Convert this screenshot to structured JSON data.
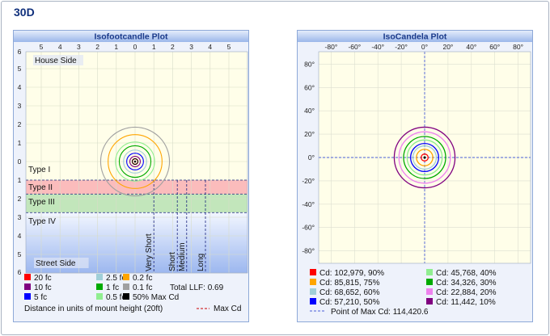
{
  "page": {
    "title": "30D"
  },
  "colors": {
    "20": "#ff0000",
    "10": "#800080",
    "5": "#0000ff",
    "2.5": "#a0cfd8",
    "1": "#00aa00",
    "0.5": "#90ee90",
    "0.2": "#ffa500",
    "0.1": "#a0a0a0",
    "max": "#000000"
  },
  "chart_data": [
    {
      "type": "contour",
      "title": "Isofootcandle Plot",
      "x_ticks": [
        "5",
        "4",
        "3",
        "2",
        "1",
        "0",
        "1",
        "2",
        "3",
        "4",
        "5"
      ],
      "x_tick_values": [
        -5,
        -4,
        -3,
        -2,
        -1,
        0,
        1,
        2,
        3,
        4,
        5
      ],
      "y_ticks": [
        "6",
        "5",
        "4",
        "3",
        "2",
        "1",
        "0",
        "1",
        "2",
        "3",
        "4",
        "5",
        "6"
      ],
      "y_tick_values": [
        -6,
        -5,
        -4,
        -3,
        -2,
        -1,
        0,
        1,
        2,
        3,
        4,
        5,
        6
      ],
      "xlim": [
        -5.5,
        5.8
      ],
      "ylim": [
        -6,
        6
      ],
      "center": [
        0,
        0
      ],
      "regions": [
        {
          "label": "House Side",
          "from": -6,
          "to": 0
        },
        {
          "label": "Type I",
          "from": -6,
          "to": 1
        },
        {
          "label": "Type II",
          "from": 1,
          "to": 1.75
        },
        {
          "label": "Type III",
          "from": 1.75,
          "to": 2.75
        },
        {
          "label": "Type IV",
          "from": 2.75,
          "to": 6
        },
        {
          "label": "Street Side",
          "from": 2.75,
          "to": 6
        }
      ],
      "distance_lines": [
        {
          "label": "Very Short",
          "x": 1
        },
        {
          "label": "Short",
          "x": 2.25
        },
        {
          "label": "Medium",
          "x": 2.75
        },
        {
          "label": "Long",
          "x": 3.75
        }
      ],
      "contours": [
        {
          "name": "20 fc",
          "level": "20",
          "radius": 0.15
        },
        {
          "name": "10 fc",
          "level": "10",
          "radius": 0.28
        },
        {
          "name": "5 fc",
          "level": "5",
          "radius": 0.45
        },
        {
          "name": "2.5 fc",
          "level": "2.5",
          "radius": 0.62
        },
        {
          "name": "1 fc",
          "level": "1",
          "radius": 0.85
        },
        {
          "name": "0.5 fc",
          "level": "0.5",
          "radius": 1.05
        },
        {
          "name": "0.2 fc",
          "level": "0.2",
          "radius": 1.45
        },
        {
          "name": "0.1 fc",
          "level": "0.1",
          "radius": 1.85
        }
      ],
      "legend": [
        {
          "label": "20 fc",
          "level": "20"
        },
        {
          "label": "2.5 fc",
          "level": "2.5"
        },
        {
          "label": "0.2 fc",
          "level": "0.2"
        },
        {
          "label": "10 fc",
          "level": "10"
        },
        {
          "label": "1 fc",
          "level": "1"
        },
        {
          "label": "0.1 fc",
          "level": "0.1"
        },
        {
          "label": "5 fc",
          "level": "5"
        },
        {
          "label": "0.5 fc",
          "level": "0.5"
        },
        {
          "label": "50% Max Cd",
          "level": "max"
        }
      ],
      "total_llf": "Total LLF: 0.69",
      "note": "Distance in units of mount height (20ft)",
      "max_cd_label": "Max Cd"
    },
    {
      "type": "contour",
      "title": "IsoCandela Plot",
      "x_ticks": [
        "-80°",
        "-60°",
        "-40°",
        "-20°",
        "0°",
        "20°",
        "40°",
        "60°",
        "80°"
      ],
      "x_tick_values": [
        -80,
        -60,
        -40,
        -20,
        0,
        20,
        40,
        60,
        80
      ],
      "y_ticks": [
        "80°",
        "60°",
        "40°",
        "20°",
        "0°",
        "-20°",
        "-40°",
        "-60°",
        "-80°"
      ],
      "y_tick_values": [
        80,
        60,
        40,
        20,
        0,
        -20,
        -40,
        -60,
        -80
      ],
      "xlim": [
        -90,
        90
      ],
      "ylim": [
        -90,
        90
      ],
      "contours": [
        {
          "name": "Cd: 102,979, 90%",
          "level": "20",
          "radius": 3
        },
        {
          "name": "Cd: 85,815, 75%",
          "level": "0.2",
          "radius": 7
        },
        {
          "name": "Cd: 68,652, 60%",
          "level": "2.5",
          "radius": 10
        },
        {
          "name": "Cd: 57,210, 50%",
          "level": "5",
          "radius": 12
        },
        {
          "name": "Cd: 45,768, 40%",
          "level": "0.5",
          "radius": 15
        },
        {
          "name": "Cd: 34,326, 30%",
          "level": "1",
          "radius": 18
        },
        {
          "name": "Cd: 22,884, 20%",
          "level": "magenta",
          "radius": 22
        },
        {
          "name": "Cd: 11,442, 10%",
          "level": "10",
          "radius": 26
        }
      ],
      "legend": [
        {
          "label": "Cd: 102,979, 90%",
          "color": "#ff0000"
        },
        {
          "label": "Cd: 45,768, 40%",
          "color": "#90ee90"
        },
        {
          "label": "Cd: 85,815, 75%",
          "color": "#ffa500"
        },
        {
          "label": "Cd: 34,326, 30%",
          "color": "#00aa00"
        },
        {
          "label": "Cd: 68,652, 60%",
          "color": "#a0cfd8"
        },
        {
          "label": "Cd: 22,884, 20%",
          "color": "#ee82ee"
        },
        {
          "label": "Cd: 57,210, 50%",
          "color": "#0000ff"
        },
        {
          "label": "Cd: 11,442, 10%",
          "color": "#800080"
        }
      ],
      "max_point_label": "Point of Max Cd: 114,420.6"
    }
  ]
}
